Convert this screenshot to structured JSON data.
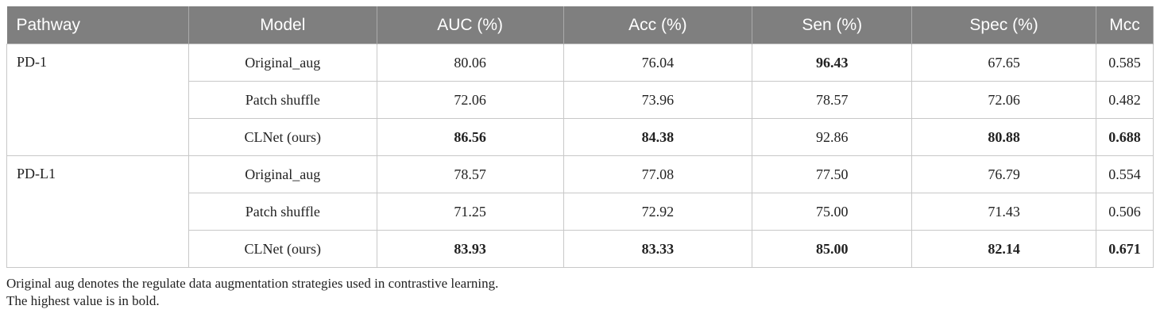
{
  "table": {
    "header": [
      "Pathway",
      "Model",
      "AUC (%)",
      "Acc (%)",
      "Sen (%)",
      "Spec (%)",
      "Mcc"
    ],
    "groups": [
      {
        "pathway": "PD-1",
        "rows": [
          [
            {
              "text": "Original_aug",
              "bold": false
            },
            {
              "text": "80.06",
              "bold": false
            },
            {
              "text": "76.04",
              "bold": false
            },
            {
              "text": "96.43",
              "bold": true
            },
            {
              "text": "67.65",
              "bold": false
            },
            {
              "text": "0.585",
              "bold": false
            }
          ],
          [
            {
              "text": "Patch shuffle",
              "bold": false
            },
            {
              "text": "72.06",
              "bold": false
            },
            {
              "text": "73.96",
              "bold": false
            },
            {
              "text": "78.57",
              "bold": false
            },
            {
              "text": "72.06",
              "bold": false
            },
            {
              "text": "0.482",
              "bold": false
            }
          ],
          [
            {
              "text": "CLNet (ours)",
              "bold": false
            },
            {
              "text": "86.56",
              "bold": true
            },
            {
              "text": "84.38",
              "bold": true
            },
            {
              "text": "92.86",
              "bold": false
            },
            {
              "text": "80.88",
              "bold": true
            },
            {
              "text": "0.688",
              "bold": true
            }
          ]
        ]
      },
      {
        "pathway": "PD-L1",
        "rows": [
          [
            {
              "text": "Original_aug",
              "bold": false
            },
            {
              "text": "78.57",
              "bold": false
            },
            {
              "text": "77.08",
              "bold": false
            },
            {
              "text": "77.50",
              "bold": false
            },
            {
              "text": "76.79",
              "bold": false
            },
            {
              "text": "0.554",
              "bold": false
            }
          ],
          [
            {
              "text": "Patch shuffle",
              "bold": false
            },
            {
              "text": "71.25",
              "bold": false
            },
            {
              "text": "72.92",
              "bold": false
            },
            {
              "text": "75.00",
              "bold": false
            },
            {
              "text": "71.43",
              "bold": false
            },
            {
              "text": "0.506",
              "bold": false
            }
          ],
          [
            {
              "text": "CLNet (ours)",
              "bold": false
            },
            {
              "text": "83.93",
              "bold": true
            },
            {
              "text": "83.33",
              "bold": true
            },
            {
              "text": "85.00",
              "bold": true
            },
            {
              "text": "82.14",
              "bold": true
            },
            {
              "text": "0.671",
              "bold": true
            }
          ]
        ]
      }
    ]
  },
  "footnotes": [
    "Original aug denotes the regulate data augmentation strategies used in contrastive learning.",
    "The highest value is in bold."
  ]
}
